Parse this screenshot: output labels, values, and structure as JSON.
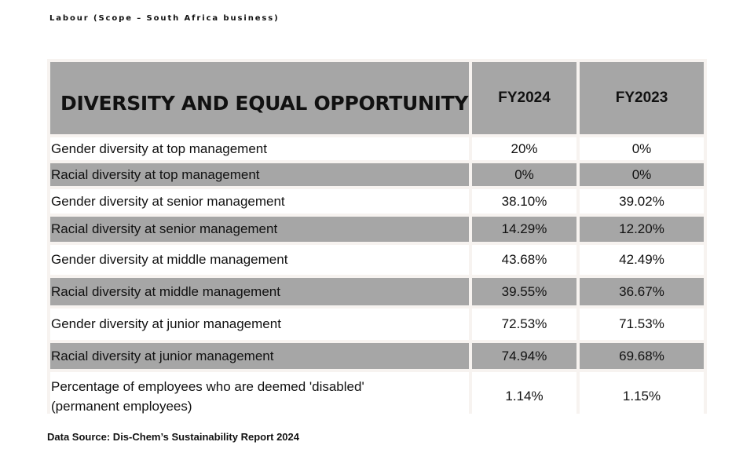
{
  "kicker": "Labour (Scope – South Africa business)",
  "table": {
    "title": "DIVERSITY AND EQUAL OPPORTUNITY",
    "columns": [
      "FY2024",
      "FY2023"
    ],
    "rows": [
      {
        "label": "Gender diversity at top management",
        "fy2024": "20%",
        "fy2023": "0%"
      },
      {
        "label": "Racial diversity at top management",
        "fy2024": "0%",
        "fy2023": "0%"
      },
      {
        "label": "Gender diversity at senior management",
        "fy2024": "38.10%",
        "fy2023": "39.02%"
      },
      {
        "label": "Racial diversity at senior management",
        "fy2024": "14.29%",
        "fy2023": "12.20%"
      },
      {
        "label": "Gender diversity at middle management",
        "fy2024": "43.68%",
        "fy2023": "42.49%"
      },
      {
        "label": "Racial diversity at middle management",
        "fy2024": "39.55%",
        "fy2023": "36.67%"
      },
      {
        "label": "Gender diversity at junior management",
        "fy2024": "72.53%",
        "fy2023": "71.53%"
      },
      {
        "label": "Racial diversity at junior management",
        "fy2024": "74.94%",
        "fy2023": "69.68%"
      },
      {
        "label": "Percentage of employees who are deemed 'disabled' (permanent employees)",
        "fy2024": "1.14%",
        "fy2023": "1.15%"
      }
    ]
  },
  "source": "Data Source: Dis-Chem’s Sustainability Report 2024"
}
